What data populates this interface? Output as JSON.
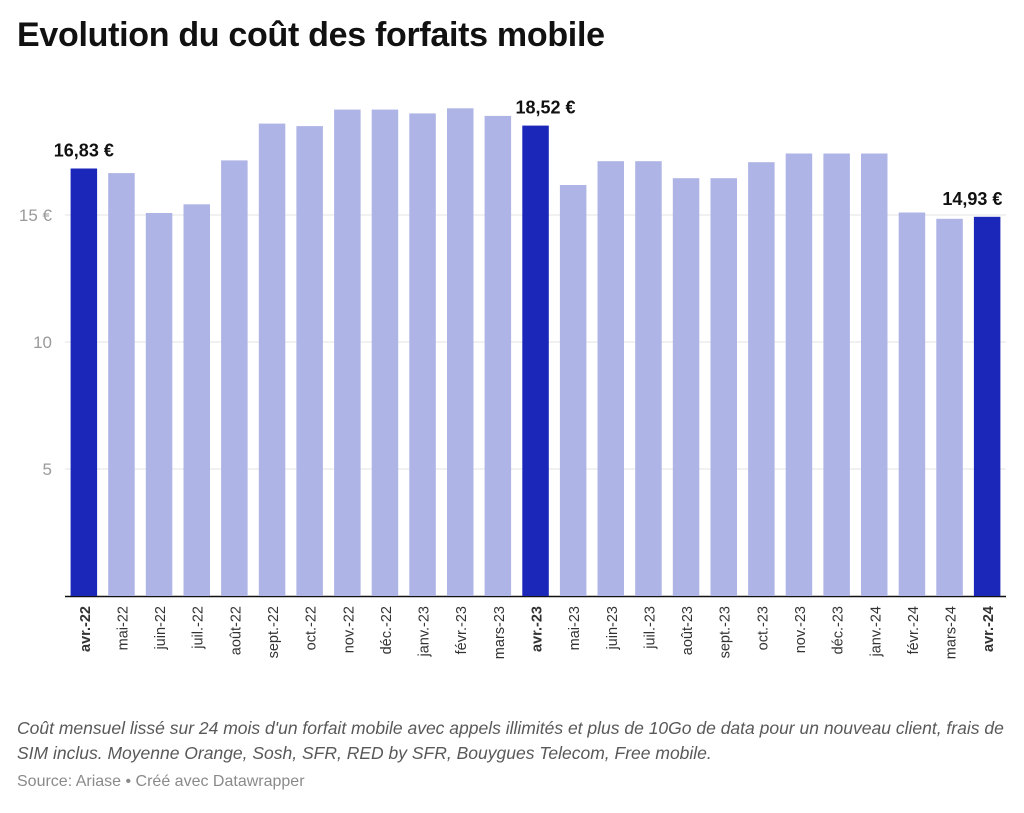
{
  "title": "Evolution du coût des forfaits mobile",
  "note": "Coût mensuel lissé sur 24 mois d'un forfait mobile avec appels illimités et plus de 10Go de data pour un nouveau client, frais de SIM inclus. Moyenne Orange, Sosh, SFR, RED by SFR, Bouygues Telecom, Free mobile.",
  "source_line": "Source: Ariase • Créé avec Datawrapper",
  "chart_data": {
    "type": "bar",
    "title": "Evolution du coût des forfaits mobile",
    "categories": [
      "avr.-22",
      "mai-22",
      "juin-22",
      "juil.-22",
      "août-22",
      "sept.-22",
      "oct.-22",
      "nov.-22",
      "déc.-22",
      "janv.-23",
      "févr.-23",
      "mars-23",
      "avr.-23",
      "mai-23",
      "juin-23",
      "juil.-23",
      "août-23",
      "sept.-23",
      "oct.-23",
      "nov.-23",
      "déc.-23",
      "janv.-24",
      "févr.-24",
      "mars-24",
      "avr.-24"
    ],
    "values": [
      16.83,
      16.65,
      15.08,
      15.42,
      17.15,
      18.6,
      18.5,
      19.15,
      19.15,
      19.0,
      19.2,
      18.9,
      18.52,
      16.18,
      17.12,
      17.12,
      16.45,
      16.45,
      17.08,
      17.42,
      17.42,
      17.42,
      15.1,
      14.85,
      14.93
    ],
    "highlighted": [
      "avr.-22",
      "avr.-23",
      "avr.-24"
    ],
    "value_labels": [
      {
        "category": "avr.-22",
        "text": "16,83 €"
      },
      {
        "category": "avr.-23",
        "text": "18,52 €"
      },
      {
        "category": "avr.-24",
        "text": "14,93 €"
      }
    ],
    "yticks": [
      {
        "value": 5,
        "label": "5"
      },
      {
        "value": 10,
        "label": "10"
      },
      {
        "value": 15,
        "label": "15 €"
      }
    ],
    "ylim": [
      0,
      20
    ],
    "xlabel": "",
    "ylabel": "",
    "grid": true,
    "colors": {
      "base": "#aeb4e6",
      "highlight": "#1b27b8",
      "grid": "#e3e3e3",
      "axis": "#111111",
      "tick_text": "#9a9a9a"
    }
  }
}
